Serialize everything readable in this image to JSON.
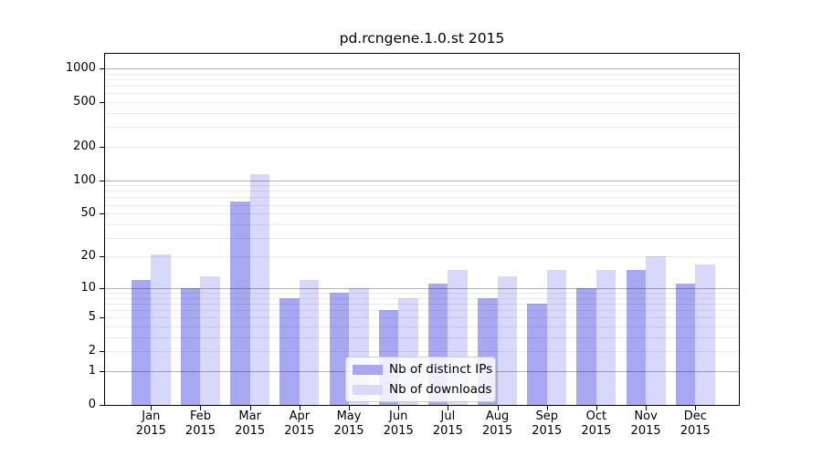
{
  "chart_data": {
    "type": "bar",
    "title": "pd.rcngene.1.0.st 2015",
    "months": [
      "Jan",
      "Feb",
      "Mar",
      "Apr",
      "May",
      "Jun",
      "Jul",
      "Aug",
      "Sep",
      "Oct",
      "Nov",
      "Dec"
    ],
    "year_label": "2015",
    "series": [
      {
        "name": "Nb of distinct IPs",
        "color": "#a8a8f2",
        "values": [
          12,
          10,
          64,
          8,
          9,
          6,
          11,
          8,
          7,
          10,
          15,
          11
        ]
      },
      {
        "name": "Nb of downloads",
        "color": "#d8d8fa",
        "values": [
          21,
          13,
          114,
          12,
          10,
          8,
          15,
          13,
          15,
          15,
          20,
          17
        ]
      }
    ],
    "yscale": "log1p",
    "yticks": [
      0,
      1,
      2,
      5,
      10,
      20,
      50,
      100,
      200,
      500,
      1000
    ],
    "ylim": [
      0,
      1380
    ],
    "grid": true,
    "legend_position": "lower center",
    "colors": {
      "axis": "#000000",
      "grid_major": "rgba(0,0,0,0.30)",
      "grid_minor": "rgba(0,0,0,0.08)",
      "text": "#000000",
      "legend_border": "#cccccc"
    }
  }
}
